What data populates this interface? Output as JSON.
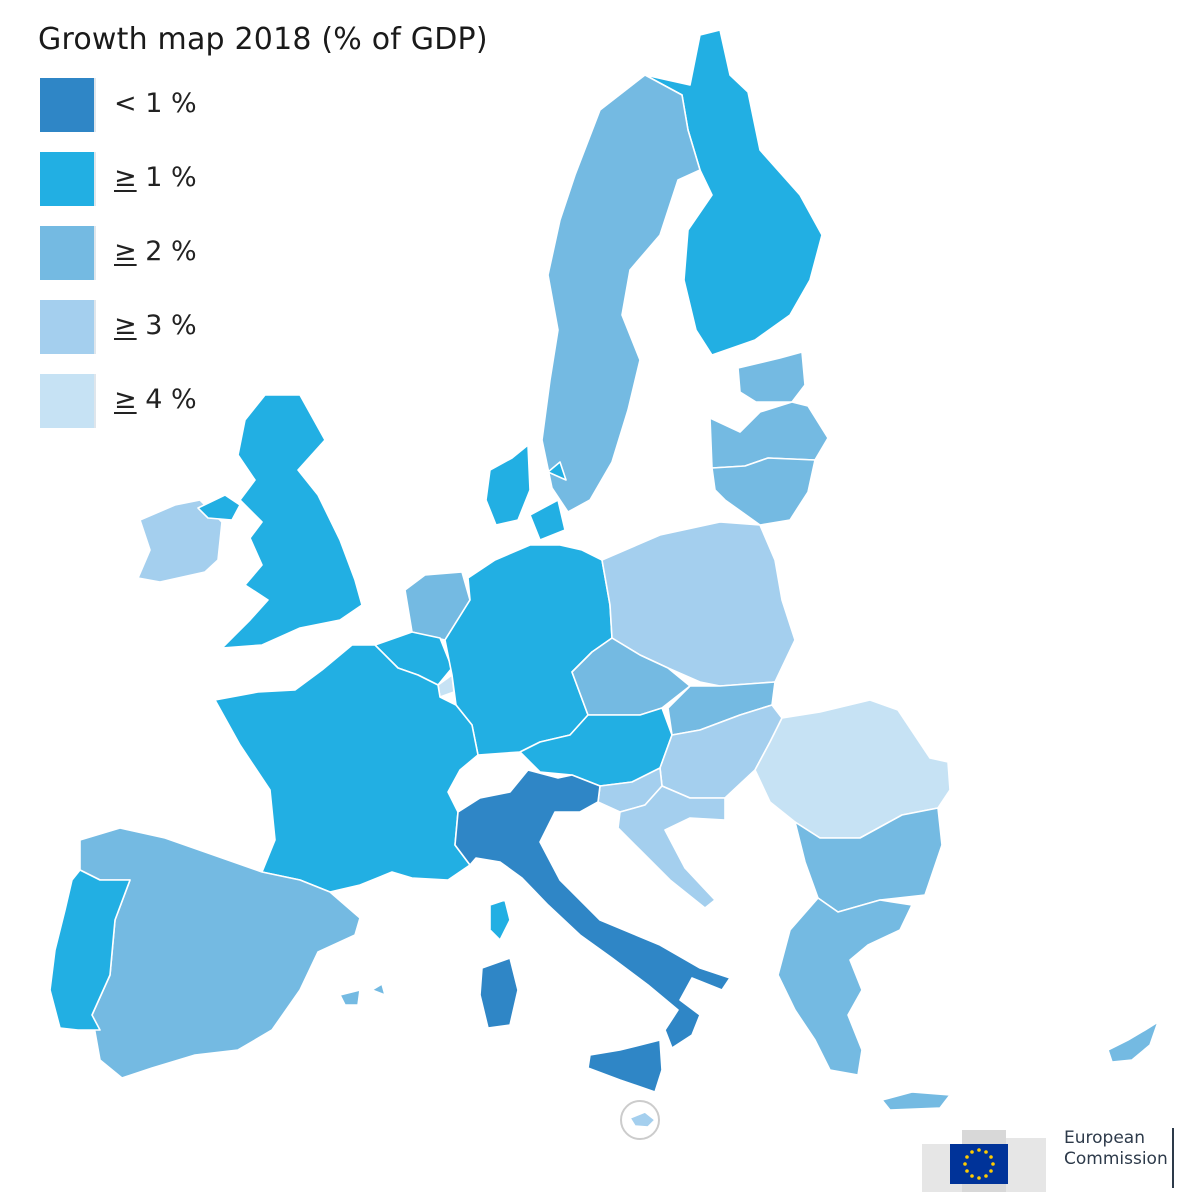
{
  "title": "Growth map 2018 (% of GDP)",
  "legend": [
    {
      "prefix": "<",
      "value": "1 %",
      "band": "lt1",
      "color": "#2f86c6"
    },
    {
      "prefix": "≥",
      "value": "1 %",
      "band": "ge1",
      "color": "#22afe3"
    },
    {
      "prefix": "≥",
      "value": "2 %",
      "band": "ge2",
      "color": "#74bae2"
    },
    {
      "prefix": "≥",
      "value": "3 %",
      "band": "ge3",
      "color": "#a4cfee"
    },
    {
      "prefix": "≥",
      "value": "4 %",
      "band": "ge4",
      "color": "#c6e2f4"
    }
  ],
  "regions": [
    {
      "name": "Finland",
      "band": "ge1"
    },
    {
      "name": "Sweden",
      "band": "ge2"
    },
    {
      "name": "Estonia",
      "band": "ge2"
    },
    {
      "name": "Latvia",
      "band": "ge2"
    },
    {
      "name": "Lithuania",
      "band": "ge2"
    },
    {
      "name": "Denmark",
      "band": "ge1"
    },
    {
      "name": "Ireland",
      "band": "ge3"
    },
    {
      "name": "United Kingdom",
      "band": "ge1"
    },
    {
      "name": "Netherlands",
      "band": "ge2"
    },
    {
      "name": "Belgium",
      "band": "ge1"
    },
    {
      "name": "Luxembourg",
      "band": "ge4"
    },
    {
      "name": "Germany",
      "band": "ge1"
    },
    {
      "name": "Poland",
      "band": "ge3"
    },
    {
      "name": "Czechia",
      "band": "ge2"
    },
    {
      "name": "Slovakia",
      "band": "ge2"
    },
    {
      "name": "Austria",
      "band": "ge1"
    },
    {
      "name": "Hungary",
      "band": "ge3"
    },
    {
      "name": "Romania",
      "band": "ge4"
    },
    {
      "name": "Slovenia",
      "band": "ge3"
    },
    {
      "name": "Croatia",
      "band": "ge3"
    },
    {
      "name": "Bulgaria",
      "band": "ge2"
    },
    {
      "name": "Greece",
      "band": "ge2"
    },
    {
      "name": "Cyprus",
      "band": "ge2"
    },
    {
      "name": "France",
      "band": "ge1"
    },
    {
      "name": "Spain",
      "band": "ge2"
    },
    {
      "name": "Portugal",
      "band": "ge1"
    },
    {
      "name": "Italy",
      "band": "lt1"
    },
    {
      "name": "Malta",
      "band": "ge3"
    }
  ],
  "colors": {
    "background": "#ffffff",
    "border": "#ffffff",
    "non_eu": "#ffffff"
  },
  "branding": {
    "line1": "European",
    "line2": "Commission",
    "flag_blue": "#003399",
    "flag_star": "#ffcc00"
  }
}
